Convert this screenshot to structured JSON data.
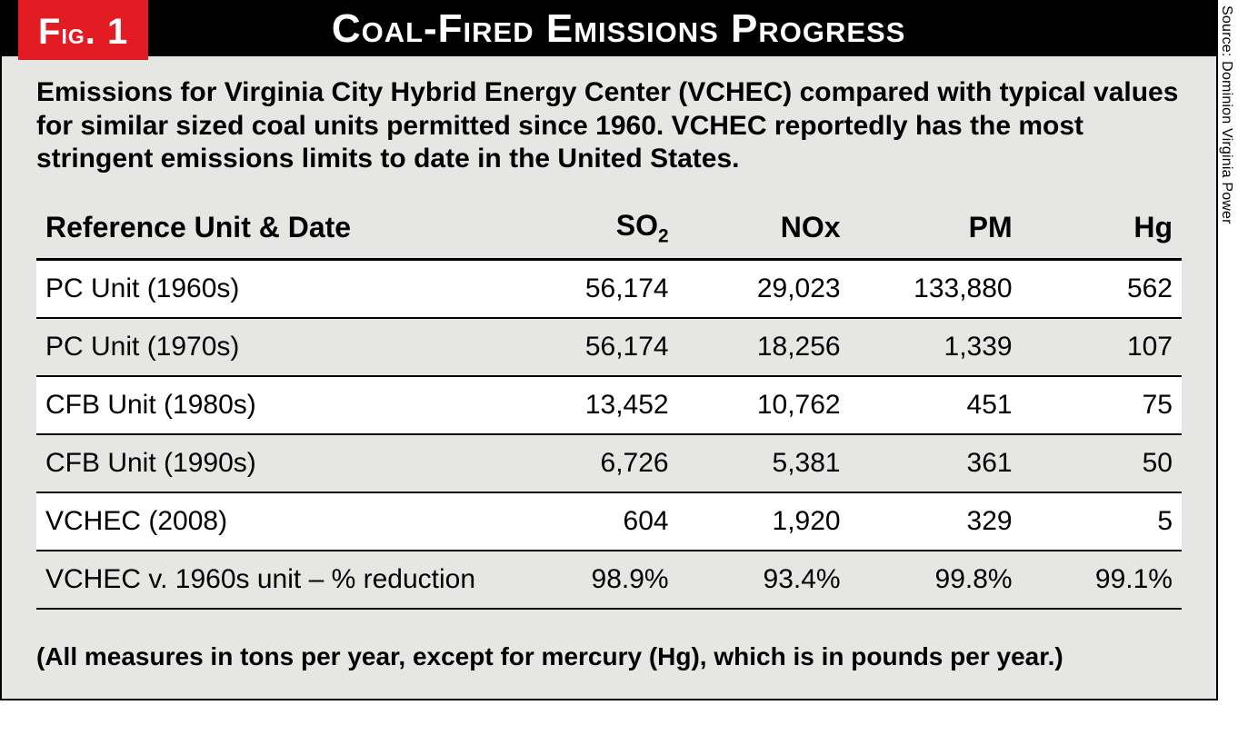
{
  "fig": {
    "badge_prefix": "F",
    "badge_rest": "ig",
    "badge_suffix": ". 1",
    "title": "Coal-Fired Emissions Progress",
    "caption": "Emissions for Virginia City Hybrid Energy Center (VCHEC) compared with typical values for similar sized coal units permitted since 1960. VCHEC reportedly has the most stringent emissions limits to date in the United States.",
    "footnote": "(All measures in tons per year, except for mercury (Hg), which is in pounds per year.)",
    "source": "Source: Dominion Virginia Power"
  },
  "table": {
    "columns": {
      "ref": "Reference Unit & Date",
      "so2_pre": "SO",
      "so2_sub": "2",
      "nox": "NOx",
      "pm": "PM",
      "hg": "Hg"
    },
    "col_widths": [
      "40%",
      "16%",
      "15%",
      "15%",
      "14%"
    ],
    "rows": [
      {
        "ref": "PC Unit (1960s)",
        "so2": "56,174",
        "nox": "29,023",
        "pm": "133,880",
        "hg": "562",
        "alt": true
      },
      {
        "ref": "PC Unit (1970s)",
        "so2": "56,174",
        "nox": "18,256",
        "pm": "1,339",
        "hg": "107",
        "alt": false
      },
      {
        "ref": "CFB Unit (1980s)",
        "so2": "13,452",
        "nox": "10,762",
        "pm": "451",
        "hg": "75",
        "alt": true
      },
      {
        "ref": "CFB Unit (1990s)",
        "so2": "6,726",
        "nox": "5,381",
        "pm": "361",
        "hg": "50",
        "alt": false
      },
      {
        "ref": "VCHEC (2008)",
        "so2": "604",
        "nox": "1,920",
        "pm": "329",
        "hg": "5",
        "alt": true
      },
      {
        "ref": "VCHEC v. 1960s unit – % reduction",
        "so2": "98.9%",
        "nox": "93.4%",
        "pm": "99.8%",
        "hg": "99.1%",
        "alt": false
      }
    ]
  },
  "colors": {
    "badge_bg": "#e31b23",
    "titlebar_bg": "#000000",
    "panel_bg": "#e6e7e5",
    "alt_row_bg": "#ffffff",
    "rule": "#000000"
  }
}
